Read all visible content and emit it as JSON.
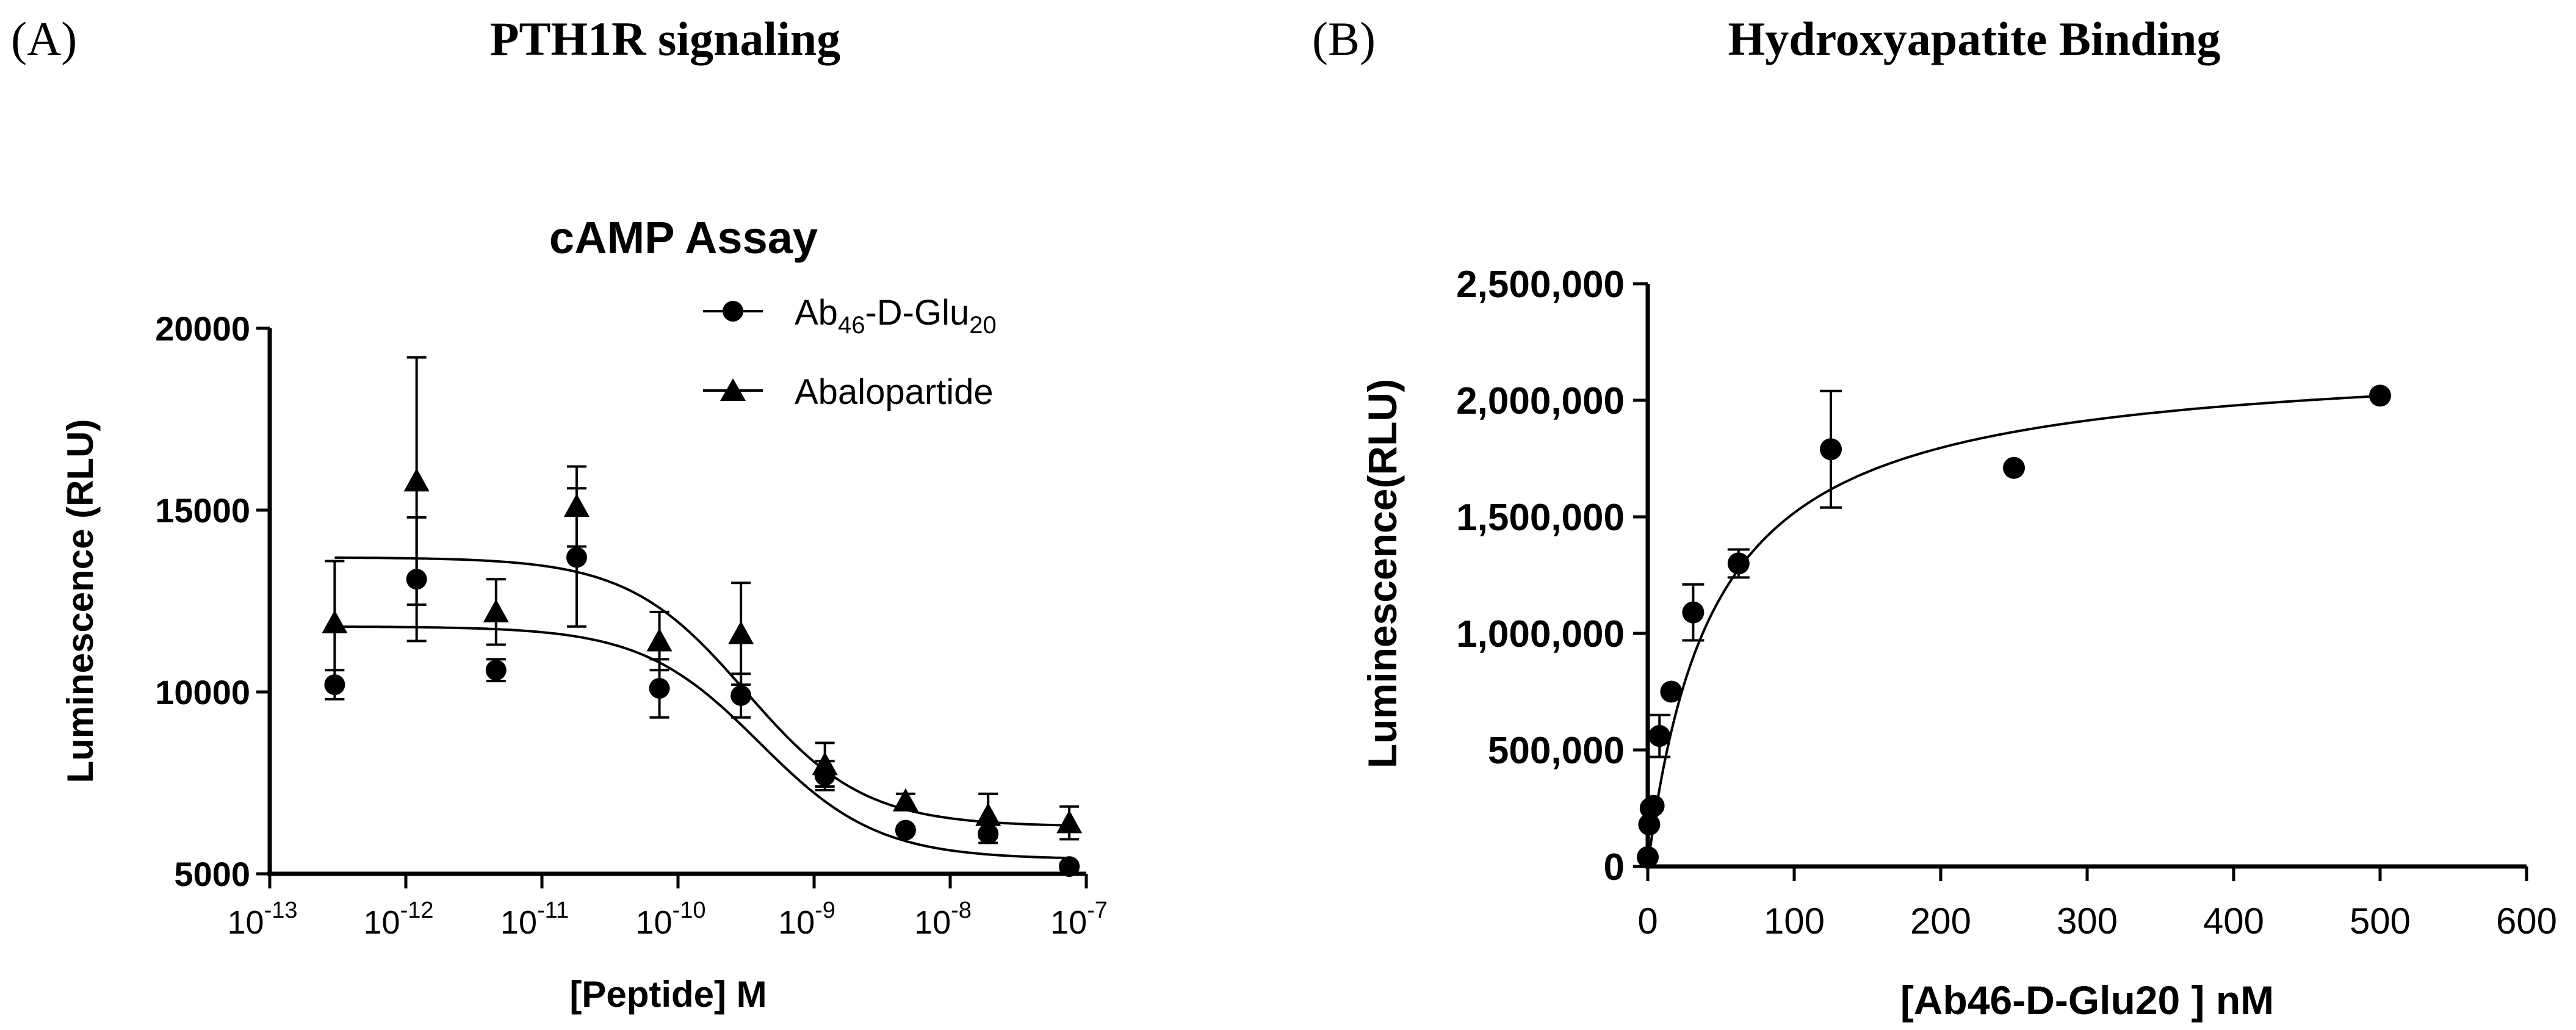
{
  "panels": {
    "a": {
      "letter": "(A)",
      "heading": "PTH1R signaling"
    },
    "b": {
      "letter": "(B)",
      "heading": "Hydroxyapatite Binding"
    }
  },
  "chart_data": [
    {
      "type": "scatter",
      "title": "cAMP Assay",
      "xlabel": "[Peptide] M",
      "ylabel": "Luminescence (RLU)",
      "xscale": "log",
      "xlim": [
        1e-13,
        1e-07
      ],
      "ylim": [
        5000,
        20000
      ],
      "xticks": [
        {
          "base": "10",
          "exp": "-13"
        },
        {
          "base": "10",
          "exp": "-12"
        },
        {
          "base": "10",
          "exp": "-11"
        },
        {
          "base": "10",
          "exp": "-10"
        },
        {
          "base": "10",
          "exp": "-9"
        },
        {
          "base": "10",
          "exp": "-8"
        },
        {
          "base": "10",
          "exp": "-7"
        }
      ],
      "yticks": [
        5000,
        10000,
        15000,
        20000
      ],
      "ytick_labels": [
        "5000",
        "10000",
        "15000",
        "20000"
      ],
      "legend_position": "top-right",
      "x": [
        3e-13,
        1.2e-12,
        4.6e-12,
        1.8e-11,
        7.3e-11,
        2.9e-10,
        1.2e-09,
        4.7e-09,
        1.9e-08,
        7.5e-08
      ],
      "series": [
        {
          "name": "Ab46-D-Glu20",
          "legend_text": {
            "main": "Ab",
            "sub1": "46",
            "mid": "-D-Glu",
            "sub2": "20"
          },
          "marker": "circle",
          "values": [
            10200,
            13100,
            10600,
            13700,
            10100,
            9900,
            7700,
            6200,
            6100,
            5200
          ],
          "errors": [
            400,
            1700,
            300,
            1900,
            800,
            600,
            400,
            100,
            250,
            100
          ],
          "fit": {
            "top": 11800,
            "bottom": 5400,
            "log_ec50": -9.4,
            "hill": 1.0
          }
        },
        {
          "name": "Abalopartide",
          "legend_text": {
            "main": "Abalopartide"
          },
          "marker": "triangle",
          "values": [
            11900,
            15800,
            12200,
            15100,
            11400,
            11600,
            8000,
            7000,
            6600,
            6400
          ],
          "errors": [
            1700,
            3400,
            900,
            1100,
            800,
            1400,
            600,
            200,
            600,
            450
          ],
          "fit": {
            "top": 13700,
            "bottom": 6300,
            "log_ec50": -9.5,
            "hill": 1.0
          }
        }
      ]
    },
    {
      "type": "scatter",
      "title": "",
      "xlabel": "[Ab46-D-Glu20 ] nM",
      "ylabel": "Luminescence(RLU)",
      "xlim": [
        0,
        600
      ],
      "ylim": [
        0,
        2500000
      ],
      "xticks": [
        0,
        100,
        200,
        300,
        400,
        500,
        600
      ],
      "xtick_labels": [
        "0",
        "100",
        "200",
        "300",
        "400",
        "500",
        "600"
      ],
      "yticks": [
        0,
        500000,
        1000000,
        1500000,
        2000000,
        2500000
      ],
      "ytick_labels": [
        "0",
        "500,000",
        "1,000,000",
        "1,500,000",
        "2,000,000",
        "2,500,000"
      ],
      "series": [
        {
          "name": "Ab46-D-Glu20",
          "marker": "circle",
          "x": [
            0,
            1,
            2,
            4,
            8,
            16,
            31,
            62,
            125,
            250,
            500
          ],
          "values": [
            40000,
            180000,
            250000,
            260000,
            560000,
            750000,
            1090000,
            1300000,
            1790000,
            1710000,
            2020000
          ],
          "errors": [
            0,
            0,
            0,
            0,
            90000,
            0,
            120000,
            60000,
            250000,
            0,
            0
          ],
          "fit": {
            "bmax": 2200000,
            "kd": 45
          }
        }
      ]
    }
  ]
}
